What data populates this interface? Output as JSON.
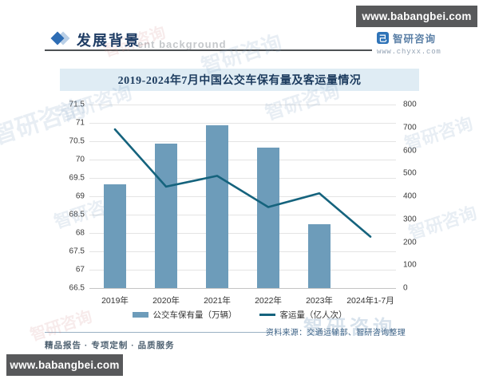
{
  "page": {
    "top_url_badge": "www.babangbei.com",
    "bottom_url_badge": "www.babangbei.com"
  },
  "header": {
    "section_title": "发展背景",
    "background_watermark": "ent background",
    "logo_name": "智研咨询",
    "logo_site": "www.chyxx.com"
  },
  "icons": {
    "zhiyan_logo_glyph": "己"
  },
  "chart_data": {
    "type": "bar",
    "subtype": "bar+line combo, dual y-axes",
    "title": "2019-2024年7月中国公交车保有量及客运量情况",
    "categories": [
      "2019年",
      "2020年",
      "2021年",
      "2022年",
      "2023年",
      "2024年1-7月"
    ],
    "series": [
      {
        "name": "公交车保有量（万辆）",
        "type": "bar",
        "axis": "left",
        "color": "#6d9cba",
        "values": [
          69.33,
          70.44,
          70.94,
          70.32,
          68.25,
          null
        ]
      },
      {
        "name": "客运量（亿人次）",
        "type": "line",
        "axis": "right",
        "color": "#15637d",
        "values": [
          692,
          442,
          489,
          353,
          413,
          224
        ]
      }
    ],
    "left_axis": {
      "min": 66.5,
      "max": 71.5,
      "step": 0.5,
      "ticks": [
        71.5,
        71,
        70.5,
        70,
        69.5,
        69,
        68.5,
        68,
        67.5,
        67,
        66.5
      ]
    },
    "right_axis": {
      "min": 0,
      "max": 800,
      "step": 100,
      "ticks": [
        800,
        700,
        600,
        500,
        400,
        300,
        200,
        100,
        0
      ]
    },
    "grid": true,
    "legend_position": "bottom"
  },
  "footer": {
    "source": "资料来源：交通运输部、智研咨询整理",
    "tagline": "精品报告 · 专项定制 · 品质服务"
  },
  "watermark_text": "智研咨询"
}
